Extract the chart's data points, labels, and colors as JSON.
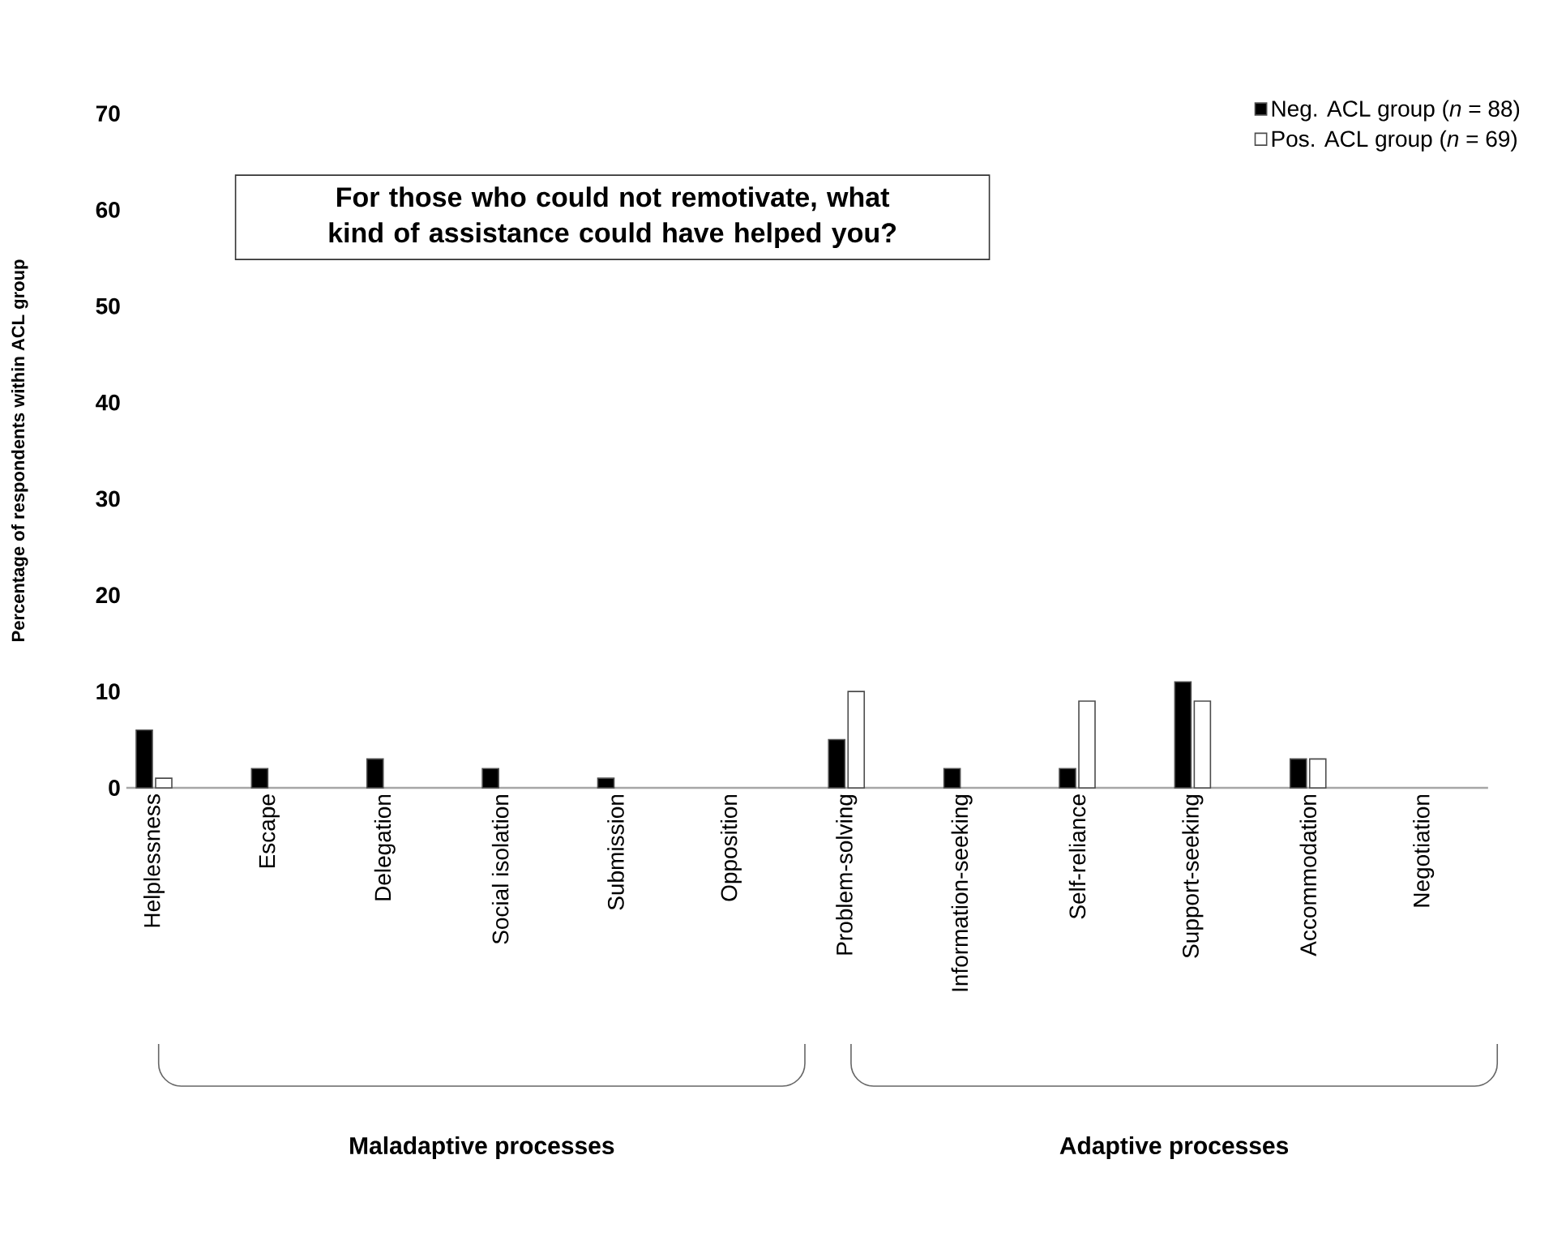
{
  "chart_data": {
    "type": "bar",
    "title": "For those who could not remotivate, what kind of assistance could have helped you?",
    "ylabel": "Percentage of respondents within ACL group",
    "categories": [
      "Helplessness",
      "Escape",
      "Delegation",
      "Social isolation",
      "Submission",
      "Opposition",
      "Problem-solving",
      "Information-seeking",
      "Self-reliance",
      "Support-seeking",
      "Accommodation",
      "Negotiation"
    ],
    "series": [
      {
        "name": "Neg. ACL group (*n* = 88)",
        "color": "#000000",
        "values": [
          6,
          2,
          3,
          2,
          1,
          0,
          5,
          2,
          2,
          11,
          3,
          0
        ]
      },
      {
        "name": "Pos. ACL group (*n* = 69)",
        "color": "#ffffff",
        "values": [
          1,
          0,
          0,
          0,
          0,
          0,
          10,
          0,
          9,
          9,
          3,
          0
        ]
      }
    ],
    "ylim": [
      0,
      70
    ],
    "yticks": [
      0,
      10,
      20,
      30,
      40,
      50,
      60,
      70
    ],
    "legend": "top right",
    "annotations": [
      "Maladaptive processes",
      "Adaptive processes"
    ]
  }
}
